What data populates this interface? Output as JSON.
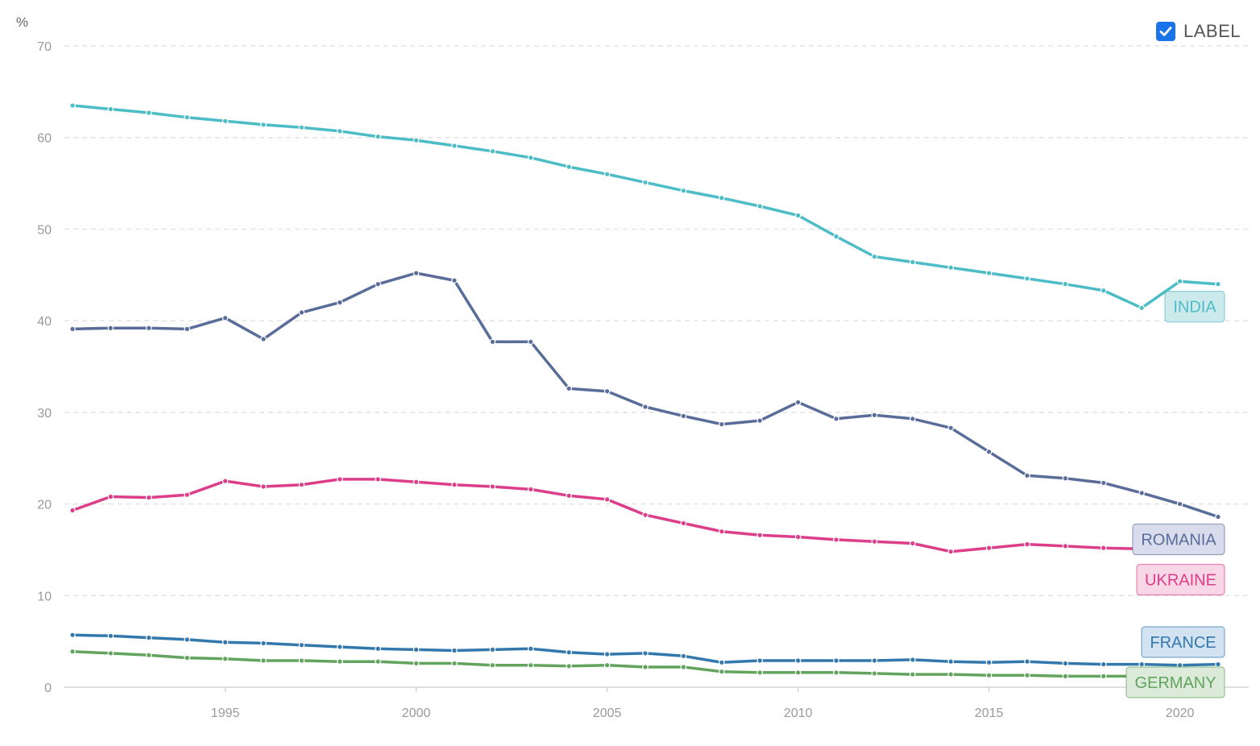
{
  "controls": {
    "label_toggle": {
      "text": "LABEL",
      "checked": true,
      "color": "#1a73e8"
    }
  },
  "chart_data": {
    "type": "line",
    "ylabel": "%",
    "xlim": [
      1991,
      2021
    ],
    "ylim": [
      0,
      70
    ],
    "yticks": [
      0,
      10,
      20,
      30,
      40,
      50,
      60,
      70
    ],
    "xticks": [
      1995,
      2000,
      2005,
      2010,
      2015,
      2020
    ],
    "grid": true,
    "x": [
      1991,
      1992,
      1993,
      1994,
      1995,
      1996,
      1997,
      1998,
      1999,
      2000,
      2001,
      2002,
      2003,
      2004,
      2005,
      2006,
      2007,
      2008,
      2009,
      2010,
      2011,
      2012,
      2013,
      2014,
      2015,
      2016,
      2017,
      2018,
      2019,
      2020,
      2021
    ],
    "series": [
      {
        "name": "INDIA",
        "color": "#4cbcc6",
        "tag_bg": "#cce9ec",
        "values": [
          63.5,
          63.1,
          62.7,
          62.2,
          61.8,
          61.4,
          61.1,
          60.7,
          60.1,
          59.7,
          59.1,
          58.5,
          57.8,
          56.8,
          56.0,
          55.1,
          54.2,
          53.4,
          52.5,
          51.5,
          49.2,
          47.0,
          46.4,
          45.8,
          45.2,
          44.6,
          44.0,
          43.3,
          41.4,
          44.3,
          44.0
        ]
      },
      {
        "name": "ROMANIA",
        "color": "#5a6d9a",
        "tag_bg": "#d9dcec",
        "values": [
          39.1,
          39.2,
          39.2,
          39.1,
          40.3,
          38.0,
          40.9,
          42.0,
          44.0,
          45.2,
          44.4,
          37.7,
          37.7,
          32.6,
          32.3,
          30.6,
          29.6,
          28.7,
          29.1,
          31.1,
          29.3,
          29.7,
          29.3,
          28.3,
          25.7,
          23.1,
          22.8,
          22.3,
          21.2,
          20.0,
          18.6
        ]
      },
      {
        "name": "UKRAINE",
        "color": "#dc3e8a",
        "tag_bg": "#f7d6e6",
        "values": [
          19.3,
          20.8,
          20.7,
          21.0,
          22.5,
          21.9,
          22.1,
          22.7,
          22.7,
          22.4,
          22.1,
          21.9,
          21.6,
          20.9,
          20.5,
          18.8,
          17.9,
          17.0,
          16.6,
          16.4,
          16.1,
          15.9,
          15.7,
          14.8,
          15.2,
          15.6,
          15.4,
          15.2,
          15.1,
          15.0,
          14.7
        ]
      },
      {
        "name": "FRANCE",
        "color": "#3378ad",
        "tag_bg": "#d3e2f0",
        "values": [
          5.7,
          5.6,
          5.4,
          5.2,
          4.9,
          4.8,
          4.6,
          4.4,
          4.2,
          4.1,
          4.0,
          4.1,
          4.2,
          3.8,
          3.6,
          3.7,
          3.4,
          2.7,
          2.9,
          2.9,
          2.9,
          2.9,
          3.0,
          2.8,
          2.7,
          2.8,
          2.6,
          2.5,
          2.5,
          2.4,
          2.5
        ]
      },
      {
        "name": "GERMANY",
        "color": "#62a35e",
        "tag_bg": "#dcebd9",
        "values": [
          3.9,
          3.7,
          3.5,
          3.2,
          3.1,
          2.9,
          2.9,
          2.8,
          2.8,
          2.6,
          2.6,
          2.4,
          2.4,
          2.3,
          2.4,
          2.2,
          2.2,
          1.7,
          1.6,
          1.6,
          1.6,
          1.5,
          1.4,
          1.4,
          1.3,
          1.3,
          1.2,
          1.2,
          1.2,
          1.3,
          1.3
        ]
      }
    ]
  }
}
